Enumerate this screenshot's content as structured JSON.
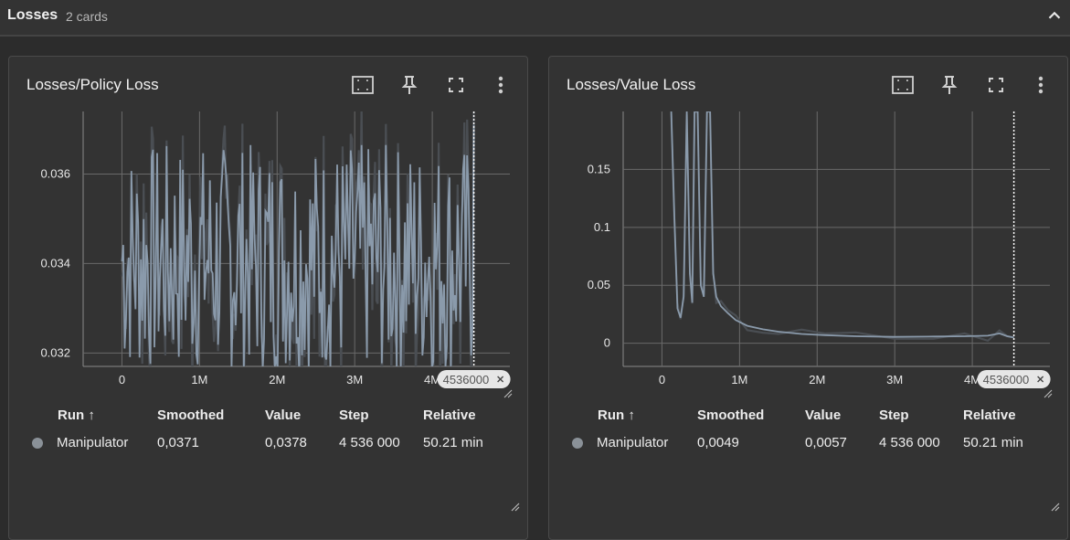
{
  "section": {
    "title": "Losses",
    "count": "2 cards"
  },
  "colors": {
    "background": "#2c2c2c",
    "card": "#333333",
    "series": "#8a9aab",
    "raw_series": "#4a4e53",
    "grid": "#6a6a6a"
  },
  "icons": [
    "fit-domain-icon",
    "pin-icon",
    "fullscreen-icon",
    "more-vert-icon",
    "chevron-up-icon",
    "close-icon"
  ],
  "cards": [
    {
      "title": "Losses/Policy Loss",
      "step_marker": "4536000",
      "legend": {
        "headers": {
          "run": "Run ↑",
          "smoothed": "Smoothed",
          "value": "Value",
          "step": "Step",
          "relative": "Relative"
        },
        "row": {
          "run": "Manipulator",
          "smoothed": "0,0371",
          "value": "0,0378",
          "step": "4 536 000",
          "relative": "50.21 min"
        }
      },
      "chart_data": {
        "type": "line",
        "series": [
          {
            "name": "Manipulator"
          }
        ],
        "x_ticks": [
          "0",
          "1M",
          "2M",
          "3M",
          "4M"
        ],
        "y_ticks": [
          "0.032",
          "0.034",
          "0.036"
        ],
        "xlim": [
          -500000,
          5000000
        ],
        "ylim": [
          0.0317,
          0.0374
        ],
        "grid": true,
        "x_start": 0,
        "x_end": 4536000,
        "y_center": 0.0341,
        "y_spread": 0.0026,
        "last_point": {
          "x": 4536000,
          "y": 0.0371
        }
      }
    },
    {
      "title": "Losses/Value Loss",
      "step_marker": "4536000",
      "legend": {
        "headers": {
          "run": "Run ↑",
          "smoothed": "Smoothed",
          "value": "Value",
          "step": "Step",
          "relative": "Relative"
        },
        "row": {
          "run": "Manipulator",
          "smoothed": "0,0049",
          "value": "0,0057",
          "step": "4 536 000",
          "relative": "50.21 min"
        }
      },
      "chart_data": {
        "type": "line",
        "series": [
          {
            "name": "Manipulator"
          }
        ],
        "x_ticks": [
          "0",
          "1M",
          "2M",
          "3M",
          "4M"
        ],
        "y_ticks": [
          "0",
          "0.05",
          "0.1",
          "0.15"
        ],
        "xlim": [
          -500000,
          5000000
        ],
        "ylim": [
          -0.02,
          0.2
        ],
        "grid": true,
        "points": [
          [
            120000,
            0.2
          ],
          [
            160000,
            0.11
          ],
          [
            200000,
            0.03
          ],
          [
            240000,
            0.022
          ],
          [
            280000,
            0.04
          ],
          [
            320000,
            0.2
          ],
          [
            360000,
            0.06
          ],
          [
            390000,
            0.035
          ],
          [
            420000,
            0.2
          ],
          [
            460000,
            0.2
          ],
          [
            500000,
            0.05
          ],
          [
            540000,
            0.04
          ],
          [
            580000,
            0.2
          ],
          [
            620000,
            0.2
          ],
          [
            660000,
            0.06
          ],
          [
            700000,
            0.04
          ],
          [
            760000,
            0.032
          ],
          [
            850000,
            0.026
          ],
          [
            950000,
            0.02
          ],
          [
            1100000,
            0.015
          ],
          [
            1300000,
            0.012
          ],
          [
            1500000,
            0.01
          ],
          [
            1800000,
            0.008
          ],
          [
            2100000,
            0.007
          ],
          [
            2500000,
            0.006
          ],
          [
            3000000,
            0.0055
          ],
          [
            3500000,
            0.0058
          ],
          [
            3900000,
            0.006
          ],
          [
            4200000,
            0.0065
          ],
          [
            4350000,
            0.0085
          ],
          [
            4450000,
            0.006
          ],
          [
            4536000,
            0.0049
          ]
        ]
      }
    }
  ]
}
